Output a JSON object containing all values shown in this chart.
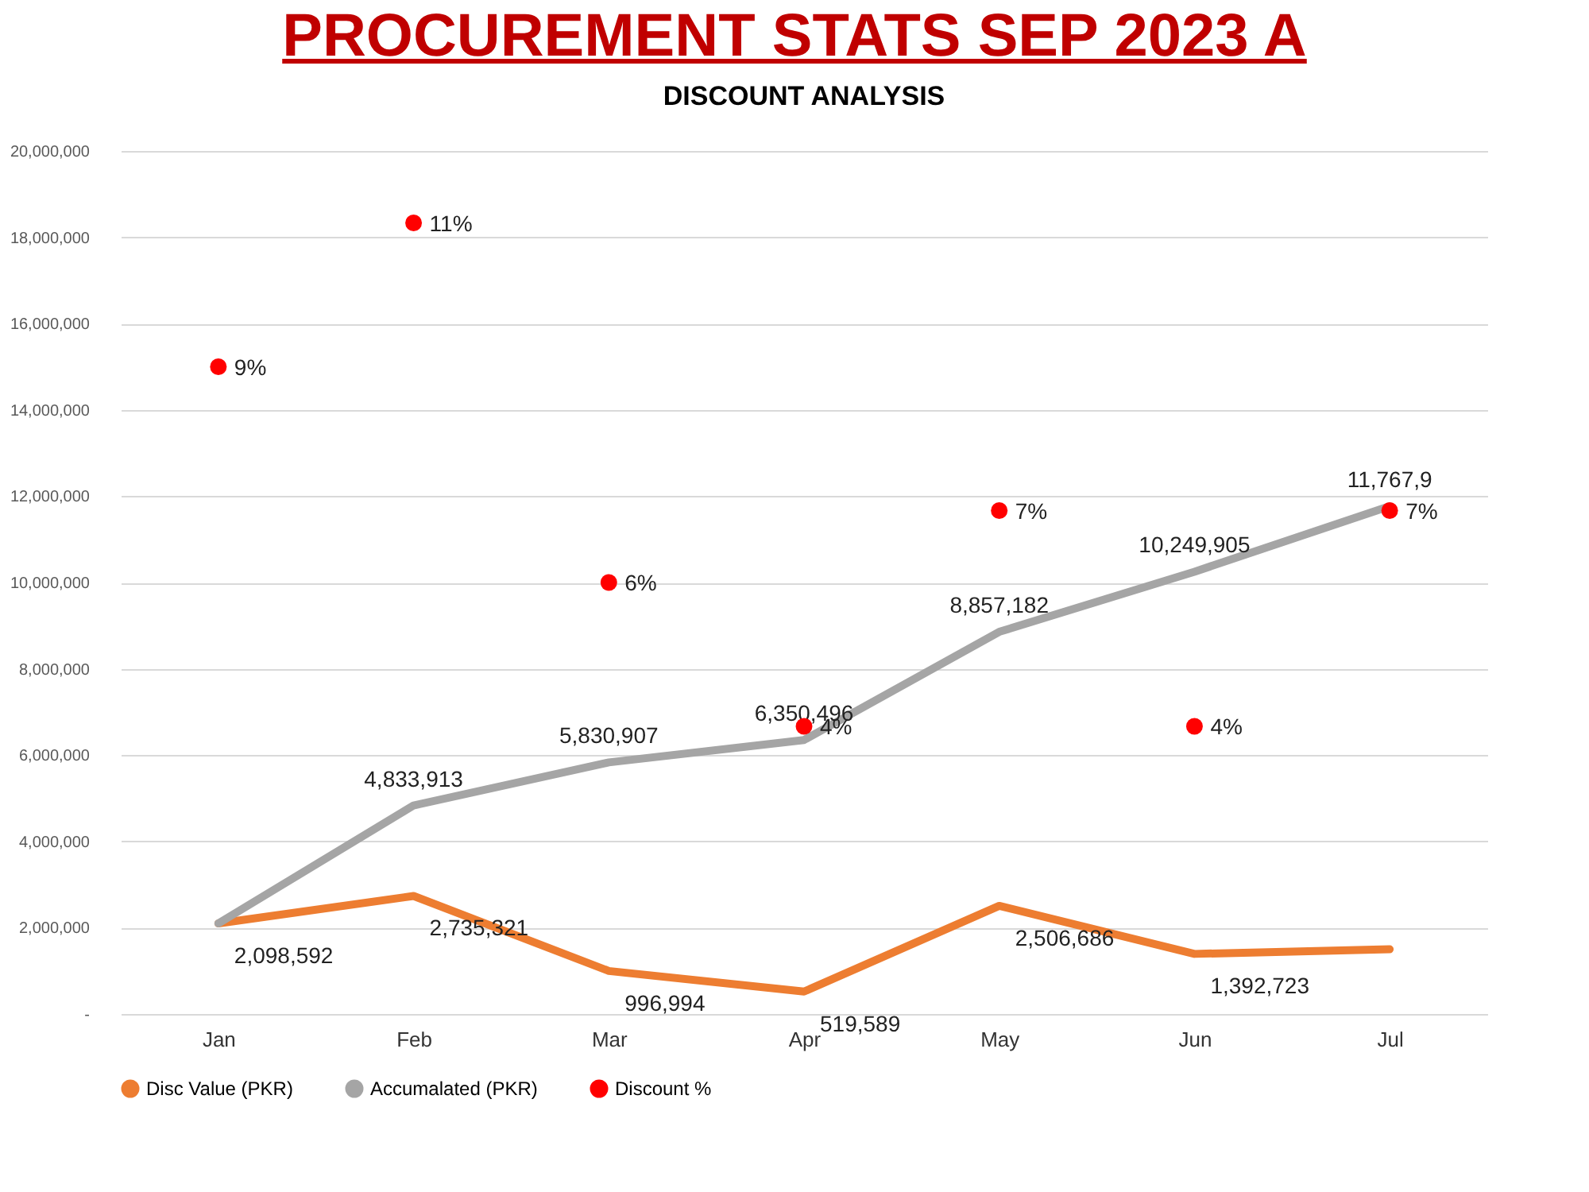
{
  "chart_data": {
    "type": "line",
    "title": "PROCUREMENT STATS SEP 2023 A",
    "subtitle": "DISCOUNT ANALYSIS",
    "categories": [
      "Jan",
      "Feb",
      "Mar",
      "Apr",
      "May",
      "Jun",
      "Jul"
    ],
    "series": [
      {
        "name": "Disc Value (PKR)",
        "type": "line",
        "marker": "none",
        "color": "#ed7d31",
        "values": [
          2098592,
          2735321,
          996994,
          519589,
          2506686,
          1392723,
          1500000
        ],
        "value_labels": [
          "2,098,592",
          "2,735,321",
          "996,994",
          "519,589",
          "2,506,686",
          "1,392,723",
          null
        ]
      },
      {
        "name": "Accumalated (PKR)",
        "type": "line",
        "marker": "none",
        "color": "#a5a5a5",
        "values": [
          2100000,
          4833913,
          5830907,
          6350496,
          8857182,
          10249905,
          11767900
        ],
        "value_labels": [
          null,
          "4,833,913",
          "5,830,907",
          "6,350,496",
          "8,857,182",
          "10,249,905",
          "11,767,9"
        ]
      },
      {
        "name": "Discount %",
        "type": "scatter",
        "marker": "circle",
        "axis": "y2",
        "color": "#ff0000",
        "values": [
          9,
          11,
          6,
          4,
          7,
          4,
          7
        ],
        "value_labels": [
          "9%",
          "11%",
          "6%",
          "4%",
          "7%",
          "4%",
          "7%"
        ]
      }
    ],
    "ylim": [
      0,
      20000000
    ],
    "yticks": [
      {
        "value": 0,
        "label": "-"
      },
      {
        "value": 2000000,
        "label": "2,000,000"
      },
      {
        "value": 4000000,
        "label": "4,000,000"
      },
      {
        "value": 6000000,
        "label": "6,000,000"
      },
      {
        "value": 8000000,
        "label": "8,000,000"
      },
      {
        "value": 10000000,
        "label": "10,000,000"
      },
      {
        "value": 12000000,
        "label": "12,000,000"
      },
      {
        "value": 14000000,
        "label": "14,000,000"
      },
      {
        "value": 16000000,
        "label": "16,000,000"
      },
      {
        "value": 18000000,
        "label": "18,000,000"
      },
      {
        "value": 20000000,
        "label": "20,000,000"
      }
    ],
    "y2lim": [
      0,
      12
    ],
    "grid": "y",
    "legend": "bottom",
    "line_style": "solid"
  }
}
